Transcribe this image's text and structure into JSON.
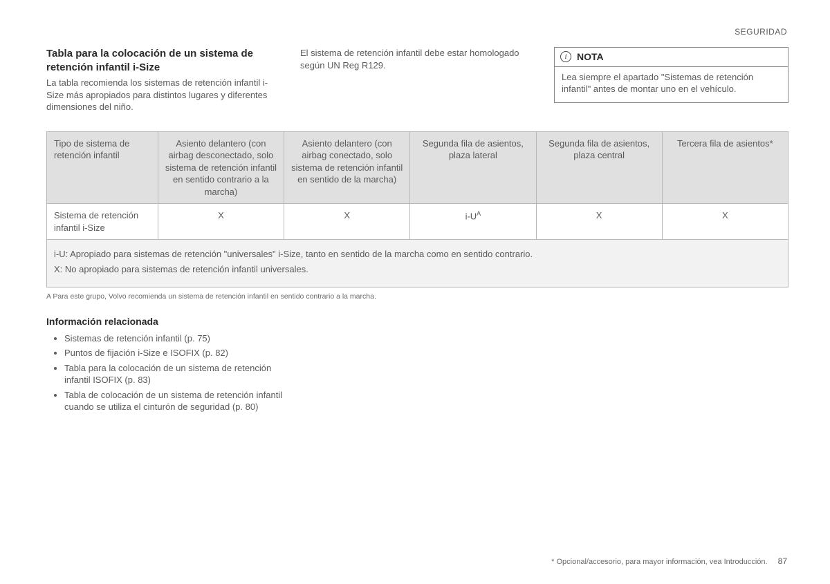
{
  "header": {
    "section": "SEGURIDAD"
  },
  "intro": {
    "title": "Tabla para la colocación de un sistema de retención infantil i-Size",
    "para1": "La tabla recomienda los sistemas de retención infantil i-Size más apropiados para distintos lugares y diferentes dimensiones del niño.",
    "para2": "El sistema de retención infantil debe estar homologado según UN Reg R129."
  },
  "nota": {
    "label": "NOTA",
    "body": "Lea siempre el apartado \"Sistemas de retención infantil\" antes de montar uno en el vehículo."
  },
  "table": {
    "headers": [
      "Tipo de sistema de retención infantil",
      "Asiento delantero (con airbag desconectado, solo sistema de retención infantil en sentido contrario a la marcha)",
      "Asiento delantero (con airbag conectado, solo sistema de retención infantil en sentido de la marcha)",
      "Segunda fila de asientos, plaza lateral",
      "Segunda fila de asientos, plaza central",
      "Tercera fila de asientos*"
    ],
    "row": {
      "label": "Sistema de retención infantil i-Size",
      "c1": "X",
      "c2": "X",
      "c3": "i-U",
      "c3_sup": "A",
      "c4": "X",
      "c5": "X"
    }
  },
  "legend": {
    "l1": "i-U: Apropiado para sistemas de retención \"universales\" i-Size, tanto en sentido de la marcha como en sentido contrario.",
    "l2": "X: No apropiado para sistemas de retención infantil universales."
  },
  "footnoteA": "A  Para este grupo, Volvo recomienda un sistema de retención infantil en sentido contrario a la marcha.",
  "related": {
    "title": "Información relacionada",
    "items": [
      "Sistemas de retención infantil (p. 75)",
      "Puntos de fijación i-Size e ISOFIX (p. 82)",
      "Tabla para la colocación de un sistema de retención infantil ISOFIX (p. 83)",
      "Tabla de colocación de un sistema de retención infantil cuando se utiliza el cinturón de seguridad (p. 80)"
    ]
  },
  "footer": {
    "note": "* Opcional/accesorio, para mayor información, vea Introducción.",
    "page": "87"
  }
}
